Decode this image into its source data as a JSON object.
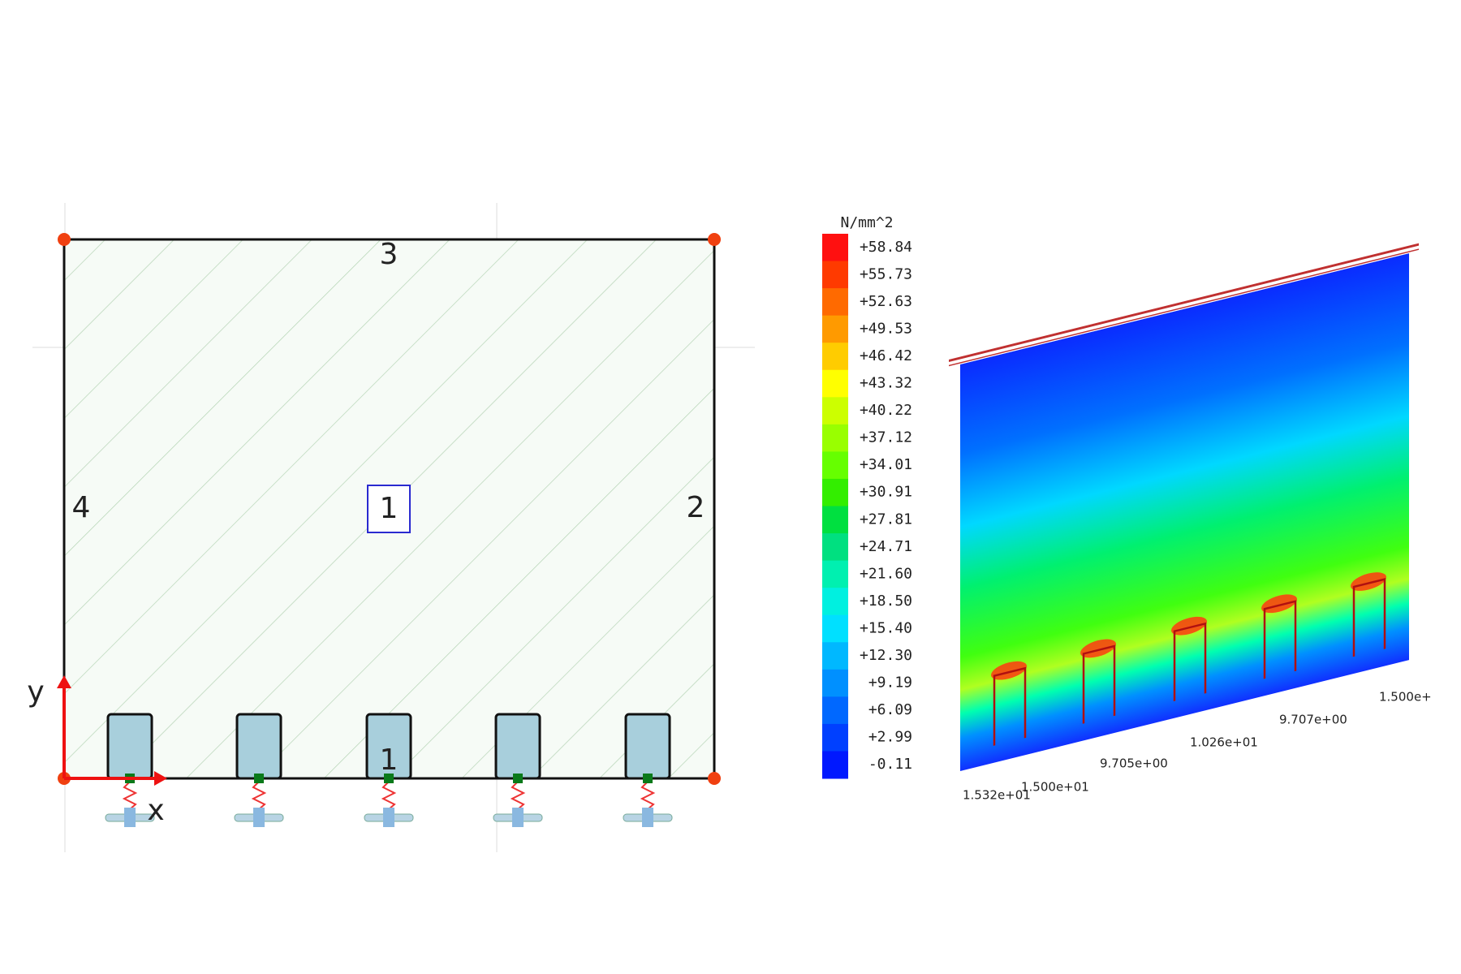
{
  "left_panel": {
    "edge_labels": [
      "3",
      "2",
      "4"
    ],
    "surface_label": "1",
    "footing_label": "1",
    "axis_labels": {
      "x": "x",
      "y": "y"
    }
  },
  "legend": {
    "unit": "N/mm^2",
    "values": [
      "+58.84",
      "+55.73",
      "+52.63",
      "+49.53",
      "+46.42",
      "+43.32",
      "+40.22",
      "+37.12",
      "+34.01",
      "+30.91",
      "+27.81",
      "+24.71",
      "+21.60",
      "+18.50",
      "+15.40",
      "+12.30",
      "+9.19",
      "+6.09",
      "+2.99",
      "-0.11"
    ]
  },
  "right_panel": {
    "annotations": [
      "1.500e+01",
      "9.705e+00",
      "1.026e+01",
      "9.707e+00",
      "1.500e+",
      "1.532e+01"
    ]
  }
}
